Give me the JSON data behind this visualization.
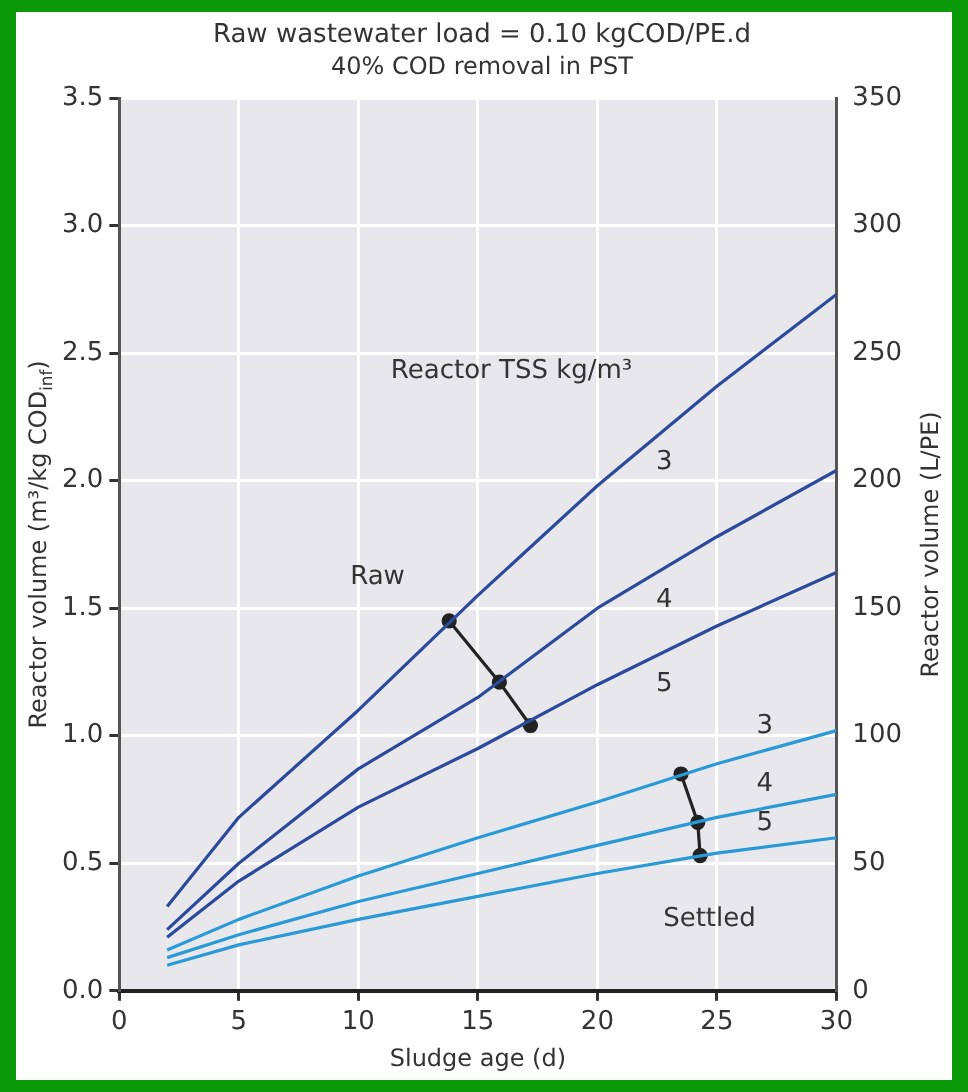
{
  "chart_data": {
    "type": "line",
    "title": "Raw wastewater load = 0.10 kgCOD/PE.d",
    "subtitle": "40% COD removal in PST",
    "xlabel": "Sludge age (d)",
    "ylabel": "Reactor volume (m³/kg COD$_{inf}$)",
    "y2label": "Reactor volume (L/PE)",
    "x": [
      2,
      5,
      10,
      15,
      20,
      25,
      30
    ],
    "series": [
      {
        "name": "3",
        "color": "#2b4a9c",
        "values": [
          0.33,
          0.68,
          1.1,
          1.55,
          1.98,
          2.37,
          2.73
        ]
      },
      {
        "name": "4",
        "color": "#2b4a9c",
        "values": [
          0.24,
          0.5,
          0.87,
          1.15,
          1.5,
          1.78,
          2.04
        ]
      },
      {
        "name": "5",
        "color": "#2b4a9c",
        "values": [
          0.21,
          0.43,
          0.72,
          0.95,
          1.2,
          1.43,
          1.64
        ]
      },
      {
        "name": "3",
        "color": "#2a9ad6",
        "values": [
          0.16,
          0.28,
          0.45,
          0.6,
          0.74,
          0.89,
          1.02
        ]
      },
      {
        "name": "4",
        "color": "#2a9ad6",
        "values": [
          0.13,
          0.22,
          0.35,
          0.46,
          0.57,
          0.68,
          0.77
        ]
      },
      {
        "name": "5",
        "color": "#2a9ad6",
        "values": [
          0.1,
          0.18,
          0.28,
          0.37,
          0.46,
          0.54,
          0.6
        ]
      },
      {
        "color": "#222222",
        "marker": "circle",
        "x": [
          13.8,
          15.9,
          17.2
        ],
        "values": [
          1.45,
          1.21,
          1.04
        ]
      },
      {
        "color": "#222222",
        "marker": "circle",
        "x": [
          23.5,
          24.2,
          24.3
        ],
        "values": [
          0.85,
          0.66,
          0.53
        ]
      }
    ],
    "xlim": [
      0,
      30
    ],
    "xticks": [
      0,
      5,
      10,
      15,
      20,
      25,
      30
    ],
    "ylim": [
      0,
      3.5
    ],
    "yticks": [
      {
        "value": 0,
        "label": "0.0"
      },
      {
        "value": 0.5,
        "label": "0.5"
      },
      {
        "value": 1,
        "label": "1.0"
      },
      {
        "value": 1.5,
        "label": "1.5"
      },
      {
        "value": 2,
        "label": "2.0"
      },
      {
        "value": 2.5,
        "label": "2.5"
      },
      {
        "value": 3,
        "label": "3.0"
      },
      {
        "value": 3.5,
        "label": "3.5"
      }
    ],
    "y2lim": [
      0,
      350
    ],
    "y2ticks": [
      0,
      50,
      100,
      150,
      200,
      250,
      300,
      350
    ],
    "grid": true,
    "legend": false,
    "marker": "none",
    "annotations": [
      "Reactor TSS kg/m³",
      "Raw",
      "Settled"
    ]
  }
}
